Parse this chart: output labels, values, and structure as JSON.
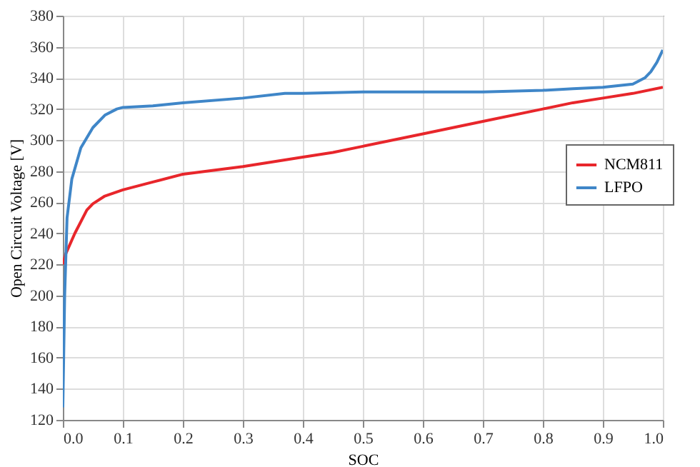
{
  "chart_data": {
    "type": "line",
    "xlabel": "SOC",
    "ylabel": "Open Circuit Voltage [V]",
    "xlim": [
      0,
      1
    ],
    "xticks": [
      {
        "value": 0,
        "label": "0.0"
      },
      0.1,
      0.2,
      0.3,
      0.4,
      0.5,
      0.6,
      0.7,
      0.8,
      0.9,
      {
        "value": 1,
        "label": "1.0"
      }
    ],
    "ylim": [
      120,
      380
    ],
    "yticks": [
      120,
      140,
      160,
      180,
      200,
      220,
      240,
      260,
      280,
      300,
      320,
      340,
      360,
      380
    ],
    "grid": true,
    "legend": "right",
    "line_style": "solid",
    "marker": "none",
    "series": [
      {
        "name": "NCM811",
        "color": "#e8262b",
        "x": [
          0,
          0.005,
          0.02,
          0.04,
          0.05,
          0.07,
          0.1,
          0.15,
          0.2,
          0.3,
          0.4,
          0.45,
          0.5,
          0.6,
          0.7,
          0.8,
          0.85,
          0.9,
          0.95,
          1.0
        ],
        "values": [
          220,
          227,
          240,
          255,
          259,
          264,
          268,
          273,
          278,
          283,
          289,
          292,
          296,
          304,
          312,
          320,
          324,
          327,
          330,
          334
        ]
      },
      {
        "name": "LFPO",
        "color": "#3f86c8",
        "x": [
          0,
          0.003,
          0.007,
          0.015,
          0.03,
          0.05,
          0.07,
          0.09,
          0.1,
          0.15,
          0.2,
          0.3,
          0.37,
          0.4,
          0.5,
          0.6,
          0.7,
          0.8,
          0.85,
          0.9,
          0.95,
          0.97,
          0.98,
          0.99,
          1.0
        ],
        "values": [
          128,
          200,
          250,
          275,
          295,
          308,
          316,
          320,
          321,
          322,
          324,
          327,
          330,
          330,
          331,
          331,
          331,
          332,
          333,
          334,
          336,
          340,
          344,
          350,
          358
        ]
      }
    ]
  }
}
